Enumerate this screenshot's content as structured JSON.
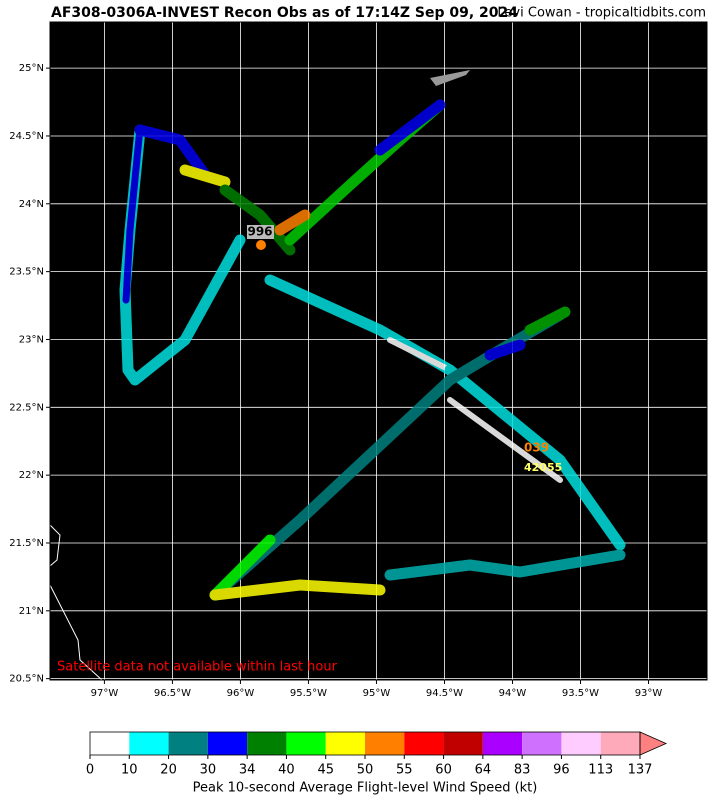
{
  "map": {
    "title": "AF308-0306A-INVEST Recon Obs as of 17:14Z Sep 09, 2024",
    "credit": "Levi Cowan - tropicaltidbits.com",
    "xlim": [
      -97.4,
      -92.57
    ],
    "ylim": [
      20.49,
      25.34
    ],
    "xticks": [
      {
        "value": -97,
        "label": "97°W"
      },
      {
        "value": -96.5,
        "label": "96.5°W"
      },
      {
        "value": -96,
        "label": "96°W"
      },
      {
        "value": -95.5,
        "label": "95.5°W"
      },
      {
        "value": -95,
        "label": "95°W"
      },
      {
        "value": -94.5,
        "label": "94.5°W"
      },
      {
        "value": -94,
        "label": "94°W"
      },
      {
        "value": -93.5,
        "label": "93.5°W"
      },
      {
        "value": -93,
        "label": "93°W"
      }
    ],
    "yticks": [
      {
        "value": 20.5,
        "label": "20.5°N"
      },
      {
        "value": 21,
        "label": "21°N"
      },
      {
        "value": 21.5,
        "label": "21.5°N"
      },
      {
        "value": 22,
        "label": "22°N"
      },
      {
        "value": 22.5,
        "label": "22.5°N"
      },
      {
        "value": 23,
        "label": "23°N"
      },
      {
        "value": 23.5,
        "label": "23.5°N"
      },
      {
        "value": 24,
        "label": "24°N"
      },
      {
        "value": 24.5,
        "label": "24.5°N"
      },
      {
        "value": 25,
        "label": "25°N"
      }
    ],
    "annotations": {
      "pressure": "996",
      "dropsonde": "039",
      "sonde_id": "42055",
      "notice": "Satellite data not available within last hour"
    }
  },
  "colorbar": {
    "ticks": [
      0,
      10,
      20,
      30,
      34,
      40,
      45,
      50,
      55,
      60,
      64,
      83,
      96,
      113,
      137
    ],
    "colors": [
      "#ffffff",
      "#00ffff",
      "#008080",
      "#0000ff",
      "#008000",
      "#00ff00",
      "#ffff00",
      "#ff8000",
      "#ff0000",
      "#c00000",
      "#aa00ff",
      "#d070ff",
      "#ffccff",
      "#ffaabb"
    ],
    "extend_color": "#ff8080",
    "label": "Peak 10-second Average Flight-level Wind Speed (kt)"
  }
}
